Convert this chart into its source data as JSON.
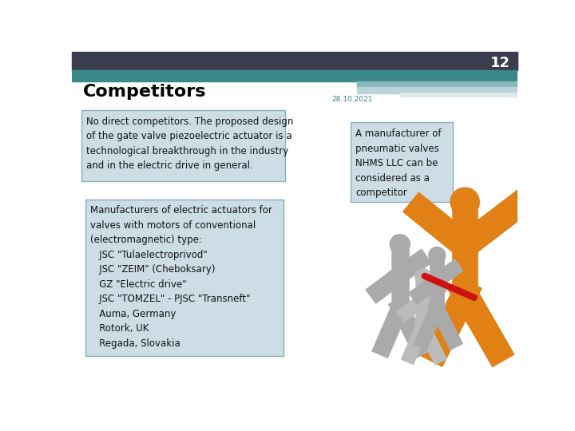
{
  "slide_number": "12",
  "title": "Competitors",
  "date": "28.10.2021",
  "background_color": "#ffffff",
  "header_dark_color": "#3a3d4d",
  "header_teal_color": "#3a8a8c",
  "header_light_teal": "#8ab8bc",
  "header_pale_teal": "#b8d4d8",
  "header_white_stripe": "#e8f0f2",
  "title_color": "#000000",
  "title_fontsize": 16,
  "box1_text": "No direct competitors. The proposed design\nof the gate valve piezoelectric actuator is a\ntechnological breakthrough in the industry\nand in the electric drive in general.",
  "box1_bg": "#ccdde6",
  "box1_border": "#8aaebb",
  "box2_text": "Manufacturers of electric actuators for\nvalves with motors of conventional\n(electromagnetic) type:\n   JSC \"Tulaelectroprivod\"\n   JSC \"ZEIM\" (Cheboksary)\n   GZ \"Electric drive\"\n   JSC \"TOMZEL\" - PJSC \"Transneft\"\n   Auma, Germany\n   Rotork, UK\n   Regada, Slovakia",
  "box2_bg": "#ccdde6",
  "box2_border": "#8aaebb",
  "box3_text": "A manufacturer of\npneumatic valves\nNHMS LLC can be\nconsidered as a\ncompetitor",
  "box3_bg": "#ccdde6",
  "box3_border": "#8aaebb",
  "text_color": "#111111",
  "text_fontsize": 8.5,
  "date_color": "#4a7c8a"
}
